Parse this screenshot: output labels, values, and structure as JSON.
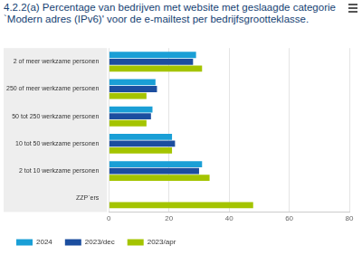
{
  "chart_data": {
    "type": "bar",
    "orientation": "horizontal",
    "title": "4.2.2(a) Percentage van bedrijven met website met geslaagde categorie `Modern adres (IPv6)' voor de e-mailtest per bedrijfsgrootteklasse.",
    "categories": [
      "2 of meer werkzame personen",
      "250 of meer werkzame personen",
      "50 tot 250 werkzame personen",
      "10 tot 50 werkzame personen",
      "2 tot 10 werkzame personen",
      "ZZP`ers"
    ],
    "series": [
      {
        "name": "2024",
        "color": "#1a9fd6",
        "values": [
          29,
          15.5,
          14.5,
          21,
          31,
          null
        ]
      },
      {
        "name": "2023/dec",
        "color": "#1c4e9f",
        "values": [
          28,
          16,
          14,
          22,
          30,
          null
        ]
      },
      {
        "name": "2023/apr",
        "color": "#a4c400",
        "values": [
          31,
          12.5,
          12.5,
          21,
          33.5,
          48
        ]
      }
    ],
    "xlim": [
      0,
      80
    ],
    "xticks": [
      0,
      20,
      40,
      60,
      80
    ],
    "grid": true,
    "legend": "bottom"
  }
}
